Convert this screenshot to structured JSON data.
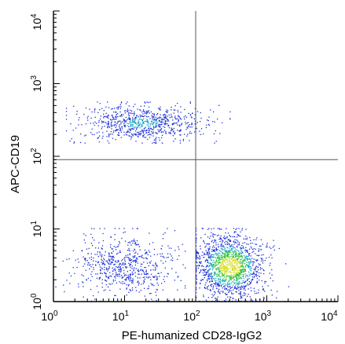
{
  "chart_data": {
    "type": "scatter",
    "title": "",
    "xlabel": "PE-humanized CD28-IgG2",
    "ylabel": "APC-CD19",
    "x_scale": "log",
    "y_scale": "log",
    "xlim": [
      1,
      10000
    ],
    "ylim": [
      1,
      10000
    ],
    "x_ticks": [
      {
        "value": 1,
        "base": "10",
        "exp": "0"
      },
      {
        "value": 10,
        "base": "10",
        "exp": "1"
      },
      {
        "value": 100,
        "base": "10",
        "exp": "2"
      },
      {
        "value": 1000,
        "base": "10",
        "exp": "3"
      },
      {
        "value": 10000,
        "base": "10",
        "exp": "4"
      }
    ],
    "y_ticks": [
      {
        "value": 1,
        "base": "10",
        "exp": "0"
      },
      {
        "value": 10,
        "base": "10",
        "exp": "1"
      },
      {
        "value": 100,
        "base": "10",
        "exp": "2"
      },
      {
        "value": 1000,
        "base": "10",
        "exp": "3"
      },
      {
        "value": 10000,
        "base": "10",
        "exp": "4"
      }
    ],
    "quadrant_gates": {
      "x": 100,
      "y": 90
    },
    "grid": false,
    "colors": {
      "low_density": "#1a2fd6",
      "mid_density": "#1fa7c8",
      "high_density": "#2fbf3a",
      "peak_density": "#d8e030"
    },
    "populations": [
      {
        "quadrant": "upper-left",
        "x_center": 17,
        "y_center": 280,
        "x_range": [
          1.5,
          300
        ],
        "y_range": [
          150,
          550
        ],
        "density": "medium"
      },
      {
        "quadrant": "lower-left",
        "x_center": 10,
        "y_center": 3,
        "x_range": [
          1,
          70
        ],
        "y_range": [
          1,
          10
        ],
        "density": "low"
      },
      {
        "quadrant": "lower-right",
        "x_center": 300,
        "y_center": 3,
        "x_range": [
          100,
          2000
        ],
        "y_range": [
          1,
          10
        ],
        "density": "high"
      }
    ]
  }
}
